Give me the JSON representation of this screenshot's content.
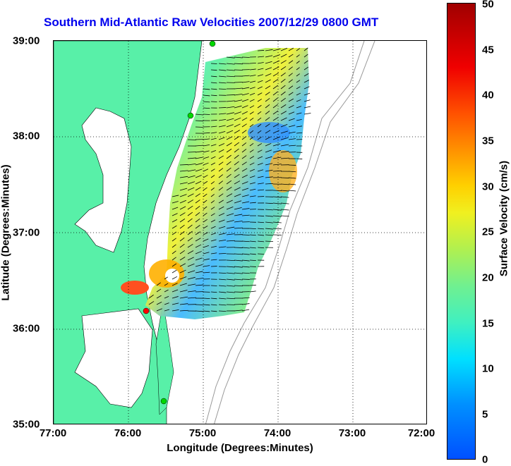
{
  "title": "Southern Mid-Atlantic Raw Velocities 2007/12/29 0800 GMT",
  "xlabel": "Longitude (Degrees:Minutes)",
  "ylabel": "Latitude (Degrees:Minutes)",
  "x_ticks": [
    "77:00",
    "76:00",
    "75:00",
    "74:00",
    "73:00",
    "72:00"
  ],
  "y_ticks": [
    "39:00",
    "38:00",
    "37:00",
    "36:00",
    "35:00"
  ],
  "colorbar": {
    "label": "Surface Velocity (cm/s)",
    "ticks": [
      "50",
      "45",
      "40",
      "35",
      "30",
      "25",
      "20",
      "15",
      "10",
      "5",
      "0"
    ]
  },
  "colors": {
    "land": "#58f0a8",
    "title": "#0000ee",
    "site_active": "#00d800",
    "site_inactive": "#ff0000"
  }
}
